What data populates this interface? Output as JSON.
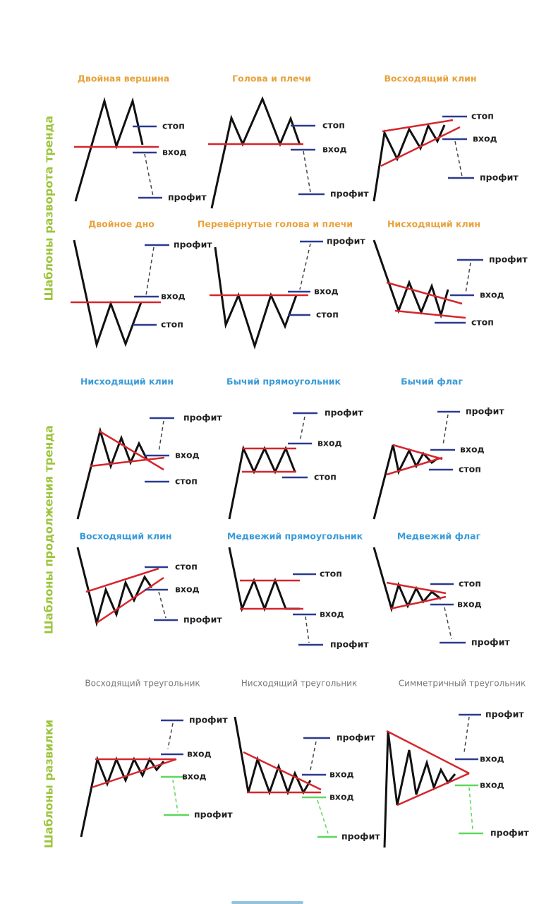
{
  "colors": {
    "reversal_title": "#e8a23c",
    "continuation_title": "#3b9bd8",
    "fork_title": "#777777",
    "section_label": "#9cc43c",
    "price": "#111111",
    "trendline": "#d6262c",
    "level": "#2b3a8f",
    "alt_level": "#5cd85c"
  },
  "sections": [
    {
      "label": "Шаблоны разворота тренда"
    },
    {
      "label": "Шаблоны продолжения тренда"
    },
    {
      "label": "Шаблоны развилки"
    }
  ],
  "patterns": [
    {
      "title": "Двойная вершина",
      "stop": "стоп",
      "entry": "вход",
      "profit": "профит"
    },
    {
      "title": "Голова и плечи",
      "stop": "стоп",
      "entry": "вход",
      "profit": "профит"
    },
    {
      "title": "Восходящий клин",
      "stop": "стоп",
      "entry": "вход",
      "profit": "профит"
    },
    {
      "title": "Двойное дно",
      "stop": "стоп",
      "entry": "вход",
      "profit": "профит"
    },
    {
      "title": "Перевёрнутые голова и плечи",
      "stop": "стоп",
      "entry": "вход",
      "profit": "профит"
    },
    {
      "title": "Нисходящий клин",
      "stop": "стоп",
      "entry": "вход",
      "profit": "профит"
    },
    {
      "title": "Нисходящий клин",
      "stop": "стоп",
      "entry": "вход",
      "profit": "профит"
    },
    {
      "title": "Бычий прямоугольник",
      "stop": "стоп",
      "entry": "вход",
      "profit": "профит"
    },
    {
      "title": "Бычий флаг",
      "stop": "стоп",
      "entry": "вход",
      "profit": "профит"
    },
    {
      "title": "Восходящий клин",
      "stop": "стоп",
      "entry": "вход",
      "profit": "профит"
    },
    {
      "title": "Медвежий прямоугольник",
      "stop": "стоп",
      "entry": "вход",
      "profit": "профит"
    },
    {
      "title": "Медвежий флаг",
      "stop": "стоп",
      "entry": "вход",
      "profit": "профит"
    },
    {
      "title": "Восходящий треугольник",
      "entry": "вход",
      "profit": "профит",
      "entry2": "вход",
      "profit2": "профит"
    },
    {
      "title": "Нисходящий треугольник",
      "entry": "вход",
      "profit": "профит",
      "entry2": "вход",
      "profit2": "профит"
    },
    {
      "title": "Симметричный треугольник",
      "entry": "вход",
      "profit": "профит",
      "entry2": "вход",
      "profit2": "профит"
    }
  ]
}
